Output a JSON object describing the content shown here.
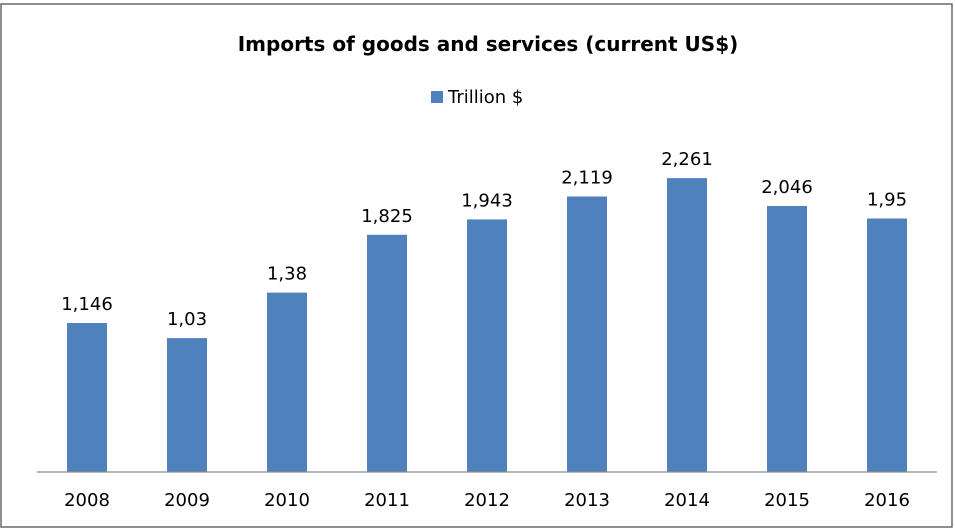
{
  "chart_data": {
    "type": "bar",
    "title": "Imports of goods and services (current US$)",
    "xlabel": "",
    "ylabel": "",
    "categories": [
      "2008",
      "2009",
      "2010",
      "2011",
      "2012",
      "2013",
      "2014",
      "2015",
      "2016"
    ],
    "series": [
      {
        "name": "Trillion $",
        "values": [
          1.146,
          1.03,
          1.38,
          1.825,
          1.943,
          2.119,
          2.261,
          2.046,
          1.95
        ],
        "labels": [
          "1,146",
          "1,03",
          "1,38",
          "1,825",
          "1,943",
          "2,119",
          "2,261",
          "2,046",
          "1,95"
        ],
        "color": "#4f81bd"
      }
    ],
    "ylim": [
      0,
      2.5
    ],
    "grid": false,
    "legend_position": "top"
  }
}
